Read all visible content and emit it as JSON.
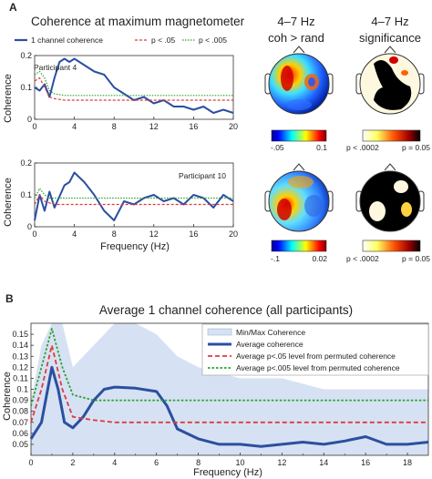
{
  "panel_a": {
    "letter": "A",
    "title": "Coherence at maximum magnetometer",
    "legend": {
      "one_channel": "1 channel coherence",
      "p05": "p < .05",
      "p005": "p < .005"
    },
    "topo_headers": {
      "col1_line1": "4–7 Hz",
      "col1_line2": "coh > rand",
      "col2_line1": "4–7 Hz",
      "col2_line2": "significance"
    },
    "participants": [
      {
        "label": "Participant 4",
        "ylabel": "Coherence"
      },
      {
        "label": "Participant 10",
        "ylabel": "Coherence"
      }
    ],
    "xlabel": "Frequency (Hz)",
    "colorbars": [
      {
        "low": "-.05",
        "high": "0.1"
      },
      {
        "low": "p < .0002",
        "high": "p = 0.05"
      },
      {
        "low": "-.1",
        "high": "0.02"
      },
      {
        "low": "p < .0002",
        "high": "p = 0.05"
      }
    ]
  },
  "panel_b": {
    "letter": "B",
    "title": "Average 1 channel coherence (all participants)",
    "ylabel": "Coherence",
    "xlabel": "Frequency (Hz)",
    "legend": {
      "minmax": "Min/Max Coherence",
      "avg": "Average coherence",
      "p05": "Average p<.05 level from permuted coherence",
      "p005": "Average p<.005 level from permuted coherence"
    }
  },
  "colors": {
    "blue": "#2b4fa0",
    "red": "#e03a3a",
    "green": "#2ca02c",
    "band": "#d6e2f3"
  },
  "chart_data": [
    {
      "type": "line",
      "title": "Participant 4",
      "xlabel": "Frequency (Hz)",
      "ylabel": "Coherence",
      "xlim": [
        0,
        20
      ],
      "ylim": [
        0,
        0.2
      ],
      "xticks": [
        0,
        4,
        8,
        12,
        16,
        20
      ],
      "yticks": [
        0,
        0.1,
        0.2
      ],
      "series": [
        {
          "name": "1 channel coherence",
          "x": [
            0,
            0.5,
            1,
            1.5,
            2,
            2.5,
            3,
            3.5,
            4,
            5,
            6,
            7,
            8,
            9,
            10,
            11,
            12,
            13,
            14,
            15,
            16,
            17,
            18,
            19,
            20
          ],
          "y": [
            0.1,
            0.09,
            0.11,
            0.07,
            0.13,
            0.18,
            0.19,
            0.18,
            0.19,
            0.17,
            0.15,
            0.14,
            0.1,
            0.08,
            0.06,
            0.07,
            0.05,
            0.06,
            0.04,
            0.04,
            0.03,
            0.04,
            0.02,
            0.03,
            0.02
          ]
        },
        {
          "name": "p < .05",
          "x": [
            0,
            0.5,
            1,
            1.5,
            2,
            3,
            4,
            6,
            8,
            12,
            16,
            20
          ],
          "y": [
            0.12,
            0.13,
            0.1,
            0.07,
            0.065,
            0.06,
            0.06,
            0.06,
            0.06,
            0.06,
            0.06,
            0.06
          ]
        },
        {
          "name": "p < .005",
          "x": [
            0,
            0.5,
            1,
            1.5,
            2,
            3,
            4,
            6,
            8,
            12,
            16,
            20
          ],
          "y": [
            0.14,
            0.15,
            0.13,
            0.09,
            0.08,
            0.075,
            0.075,
            0.075,
            0.075,
            0.075,
            0.075,
            0.075
          ]
        }
      ]
    },
    {
      "type": "line",
      "title": "Participant 10",
      "xlabel": "Frequency (Hz)",
      "ylabel": "Coherence",
      "xlim": [
        0,
        20
      ],
      "ylim": [
        0,
        0.2
      ],
      "xticks": [
        0,
        4,
        8,
        12,
        16,
        20
      ],
      "yticks": [
        0,
        0.1,
        0.2
      ],
      "series": [
        {
          "name": "1 channel coherence",
          "x": [
            0,
            0.5,
            1,
            1.5,
            2,
            3,
            3.5,
            4,
            5,
            6,
            7,
            8,
            9,
            10,
            11,
            12,
            13,
            14,
            15,
            16,
            17,
            18,
            19,
            20
          ],
          "y": [
            0.02,
            0.1,
            0.05,
            0.11,
            0.06,
            0.13,
            0.14,
            0.17,
            0.14,
            0.1,
            0.05,
            0.02,
            0.08,
            0.07,
            0.09,
            0.1,
            0.08,
            0.09,
            0.07,
            0.1,
            0.09,
            0.06,
            0.1,
            0.08
          ]
        },
        {
          "name": "p < .05",
          "x": [
            0,
            0.5,
            1,
            1.5,
            2,
            4,
            8,
            12,
            16,
            20
          ],
          "y": [
            0.07,
            0.1,
            0.08,
            0.075,
            0.07,
            0.07,
            0.07,
            0.07,
            0.07,
            0.07
          ]
        },
        {
          "name": "p < .005",
          "x": [
            0,
            0.5,
            1,
            1.5,
            2,
            4,
            8,
            12,
            16,
            20
          ],
          "y": [
            0.09,
            0.12,
            0.1,
            0.09,
            0.09,
            0.09,
            0.09,
            0.09,
            0.09,
            0.09
          ]
        }
      ]
    },
    {
      "type": "area",
      "title": "Average 1 channel coherence (all participants)",
      "xlabel": "Frequency (Hz)",
      "ylabel": "Coherence",
      "xlim": [
        0,
        19
      ],
      "ylim": [
        0.04,
        0.16
      ],
      "xticks": [
        0,
        2,
        4,
        6,
        8,
        10,
        12,
        14,
        16,
        18
      ],
      "yticks": [
        0.05,
        0.06,
        0.07,
        0.08,
        0.09,
        0.1,
        0.11,
        0.12,
        0.13,
        0.14,
        0.15
      ],
      "band": {
        "name": "Min/Max Coherence",
        "x": [
          0,
          0.5,
          1,
          1.5,
          2,
          3,
          4,
          5,
          6,
          7,
          8,
          10,
          12,
          14,
          16,
          18,
          19
        ],
        "min": [
          0.04,
          0.04,
          0.04,
          0.04,
          0.04,
          0.04,
          0.04,
          0.04,
          0.04,
          0.04,
          0.04,
          0.04,
          0.04,
          0.04,
          0.04,
          0.04,
          0.04
        ],
        "max": [
          0.09,
          0.14,
          0.16,
          0.16,
          0.12,
          0.14,
          0.16,
          0.16,
          0.15,
          0.13,
          0.12,
          0.11,
          0.11,
          0.1,
          0.1,
          0.1,
          0.1
        ]
      },
      "series": [
        {
          "name": "Average coherence",
          "x": [
            0,
            0.5,
            1,
            1.3,
            1.6,
            2,
            2.5,
            3,
            3.5,
            4,
            5,
            6,
            6.5,
            7,
            8,
            9,
            10,
            11,
            12,
            13,
            14,
            15,
            16,
            17,
            18,
            19
          ],
          "y": [
            0.055,
            0.07,
            0.12,
            0.1,
            0.07,
            0.065,
            0.075,
            0.09,
            0.1,
            0.102,
            0.101,
            0.098,
            0.085,
            0.064,
            0.055,
            0.05,
            0.05,
            0.048,
            0.05,
            0.052,
            0.05,
            0.053,
            0.057,
            0.05,
            0.05,
            0.052
          ]
        },
        {
          "name": "Average p<.05 level from permuted coherence",
          "x": [
            0,
            0.5,
            1,
            1.5,
            2,
            3,
            4,
            6,
            8,
            10,
            12,
            14,
            16,
            18,
            19
          ],
          "y": [
            0.07,
            0.1,
            0.14,
            0.1,
            0.075,
            0.072,
            0.07,
            0.07,
            0.07,
            0.07,
            0.07,
            0.07,
            0.07,
            0.07,
            0.07
          ]
        },
        {
          "name": "Average p<.005 level from permuted coherence",
          "x": [
            0,
            0.5,
            1,
            1.5,
            2,
            3,
            4,
            6,
            8,
            10,
            12,
            14,
            16,
            18,
            19
          ],
          "y": [
            0.085,
            0.12,
            0.155,
            0.12,
            0.095,
            0.09,
            0.09,
            0.09,
            0.09,
            0.09,
            0.09,
            0.09,
            0.09,
            0.09,
            0.09
          ]
        }
      ]
    }
  ]
}
